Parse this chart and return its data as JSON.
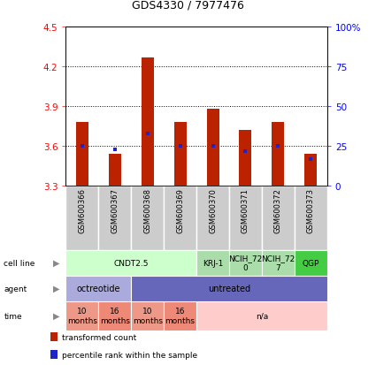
{
  "title": "GDS4330 / 7977476",
  "samples": [
    "GSM600366",
    "GSM600367",
    "GSM600368",
    "GSM600369",
    "GSM600370",
    "GSM600371",
    "GSM600372",
    "GSM600373"
  ],
  "bar_bottoms": [
    3.3,
    3.3,
    3.3,
    3.3,
    3.3,
    3.3,
    3.3,
    3.3
  ],
  "bar_tops": [
    3.78,
    3.54,
    4.27,
    3.78,
    3.88,
    3.72,
    3.78,
    3.54
  ],
  "percentile_values": [
    25,
    23,
    33,
    25,
    25,
    22,
    25,
    17
  ],
  "ylim": [
    3.3,
    4.5
  ],
  "yticks_left": [
    3.3,
    3.6,
    3.9,
    4.2,
    4.5
  ],
  "yticks_right": [
    0,
    25,
    50,
    75,
    100
  ],
  "ytick_right_labels": [
    "0",
    "25",
    "50",
    "75",
    "100%"
  ],
  "bar_color": "#bb2200",
  "dot_color": "#2222cc",
  "cell_line_groups": [
    {
      "label": "CNDT2.5",
      "start": 0,
      "end": 4,
      "color": "#ccffcc"
    },
    {
      "label": "KRJ-1",
      "start": 4,
      "end": 5,
      "color": "#aaddaa"
    },
    {
      "label": "NCIH_72\n0",
      "start": 5,
      "end": 6,
      "color": "#aaddaa"
    },
    {
      "label": "NCIH_72\n7",
      "start": 6,
      "end": 7,
      "color": "#aaddaa"
    },
    {
      "label": "QGP",
      "start": 7,
      "end": 8,
      "color": "#44cc44"
    }
  ],
  "agent_groups": [
    {
      "label": "octreotide",
      "start": 0,
      "end": 2,
      "color": "#aaaadd"
    },
    {
      "label": "untreated",
      "start": 2,
      "end": 8,
      "color": "#6666bb"
    }
  ],
  "time_groups": [
    {
      "label": "10\nmonths",
      "start": 0,
      "end": 1,
      "color": "#ee9988"
    },
    {
      "label": "16\nmonths",
      "start": 1,
      "end": 2,
      "color": "#ee8877"
    },
    {
      "label": "10\nmonths",
      "start": 2,
      "end": 3,
      "color": "#ee9988"
    },
    {
      "label": "16\nmonths",
      "start": 3,
      "end": 4,
      "color": "#ee8877"
    },
    {
      "label": "n/a",
      "start": 4,
      "end": 8,
      "color": "#ffcccc"
    }
  ],
  "row_labels": [
    "cell line",
    "agent",
    "time"
  ],
  "legend_items": [
    {
      "color": "#bb2200",
      "label": "transformed count"
    },
    {
      "color": "#2222cc",
      "label": "percentile rank within the sample"
    }
  ],
  "gsm_bg_color": "#cccccc",
  "fig_bg_color": "#ffffff"
}
